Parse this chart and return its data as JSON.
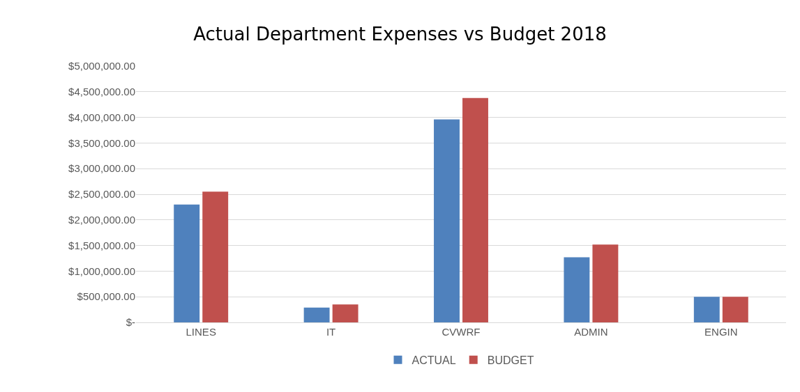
{
  "chart_data": {
    "type": "bar",
    "title": "Actual Department Expenses vs Budget 2018",
    "categories": [
      "LINES",
      "IT",
      "CVWRF",
      "ADMIN",
      "ENGIN"
    ],
    "series": [
      {
        "name": "ACTUAL",
        "color": "#4f81bd",
        "values": [
          2300000,
          290000,
          3960000,
          1270000,
          500000
        ]
      },
      {
        "name": "BUDGET",
        "color": "#c0504d",
        "values": [
          2550000,
          350000,
          4380000,
          1520000,
          500000
        ]
      }
    ],
    "ylim": [
      0,
      5000000
    ],
    "yticks": [
      {
        "value": 0,
        "label": "$-"
      },
      {
        "value": 500000,
        "label": "$500,000.00"
      },
      {
        "value": 1000000,
        "label": "$1,000,000.00"
      },
      {
        "value": 1500000,
        "label": "$1,500,000.00"
      },
      {
        "value": 2000000,
        "label": "$2,000,000.00"
      },
      {
        "value": 2500000,
        "label": "$2,500,000.00"
      },
      {
        "value": 3000000,
        "label": "$3,000,000.00"
      },
      {
        "value": 3500000,
        "label": "$3,500,000.00"
      },
      {
        "value": 4000000,
        "label": "$4,000,000.00"
      },
      {
        "value": 4500000,
        "label": "$4,500,000.00"
      },
      {
        "value": 5000000,
        "label": "$5,000,000.00"
      }
    ],
    "grid": "y",
    "legend": "bottom"
  }
}
